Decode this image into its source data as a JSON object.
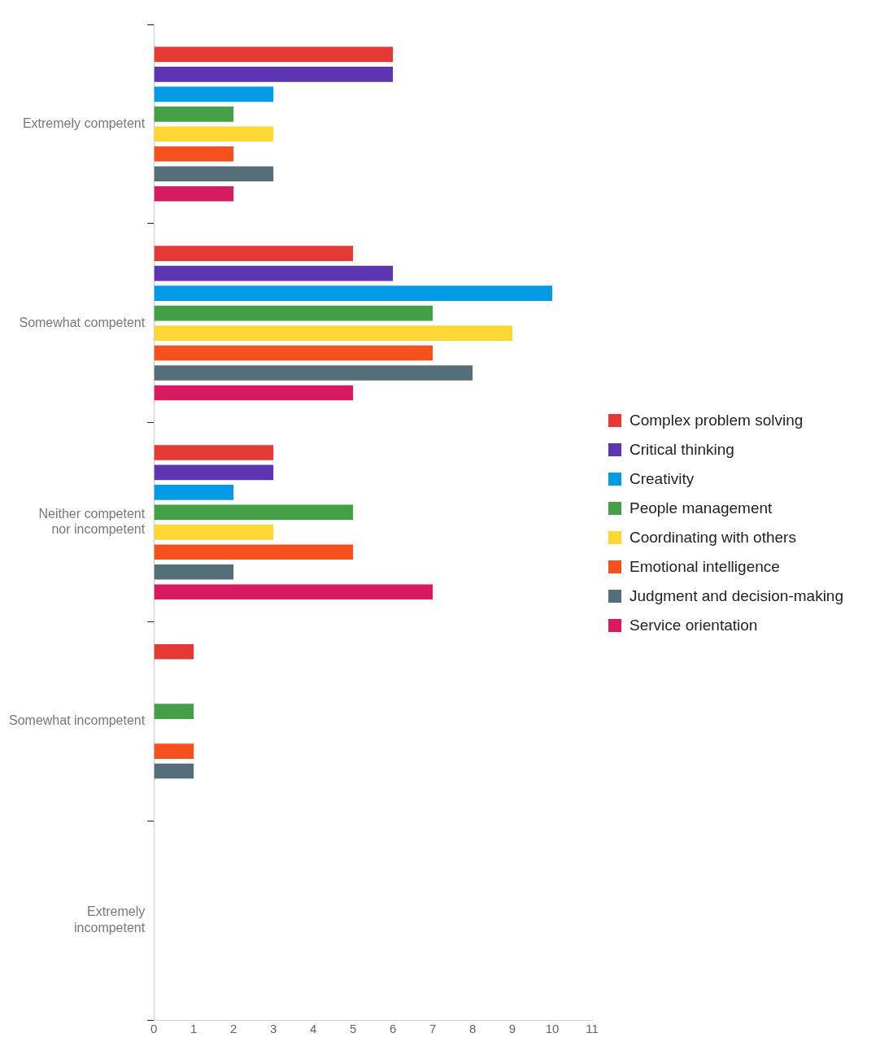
{
  "chart_data": {
    "type": "bar",
    "orientation": "horizontal",
    "categories": [
      "Extremely competent",
      "Somewhat competent",
      "Neither competent nor incompetent",
      "Somewhat incompetent",
      "Extremely incompetent"
    ],
    "series": [
      {
        "name": "Complex problem solving",
        "color": "#e53935",
        "values": [
          6,
          5,
          3,
          1,
          0
        ]
      },
      {
        "name": "Critical thinking",
        "color": "#5e35b1",
        "values": [
          6,
          6,
          3,
          0,
          0
        ]
      },
      {
        "name": "Creativity",
        "color": "#039be5",
        "values": [
          3,
          10,
          2,
          0,
          0
        ]
      },
      {
        "name": "People management",
        "color": "#43a047",
        "values": [
          2,
          7,
          5,
          1,
          0
        ]
      },
      {
        "name": "Coordinating with others",
        "color": "#fdd835",
        "values": [
          3,
          9,
          3,
          0,
          0
        ]
      },
      {
        "name": "Emotional intelligence",
        "color": "#f4511e",
        "values": [
          2,
          7,
          5,
          1,
          0
        ]
      },
      {
        "name": "Judgment and decision-making",
        "color": "#546e7a",
        "values": [
          3,
          8,
          2,
          1,
          0
        ]
      },
      {
        "name": "Service orientation",
        "color": "#d81b60",
        "values": [
          2,
          5,
          7,
          0,
          0
        ]
      }
    ],
    "xlim": [
      0,
      11
    ],
    "xticks": [
      0,
      1,
      2,
      3,
      4,
      5,
      6,
      7,
      8,
      9,
      10,
      11
    ],
    "grid": false,
    "legend": "right"
  }
}
